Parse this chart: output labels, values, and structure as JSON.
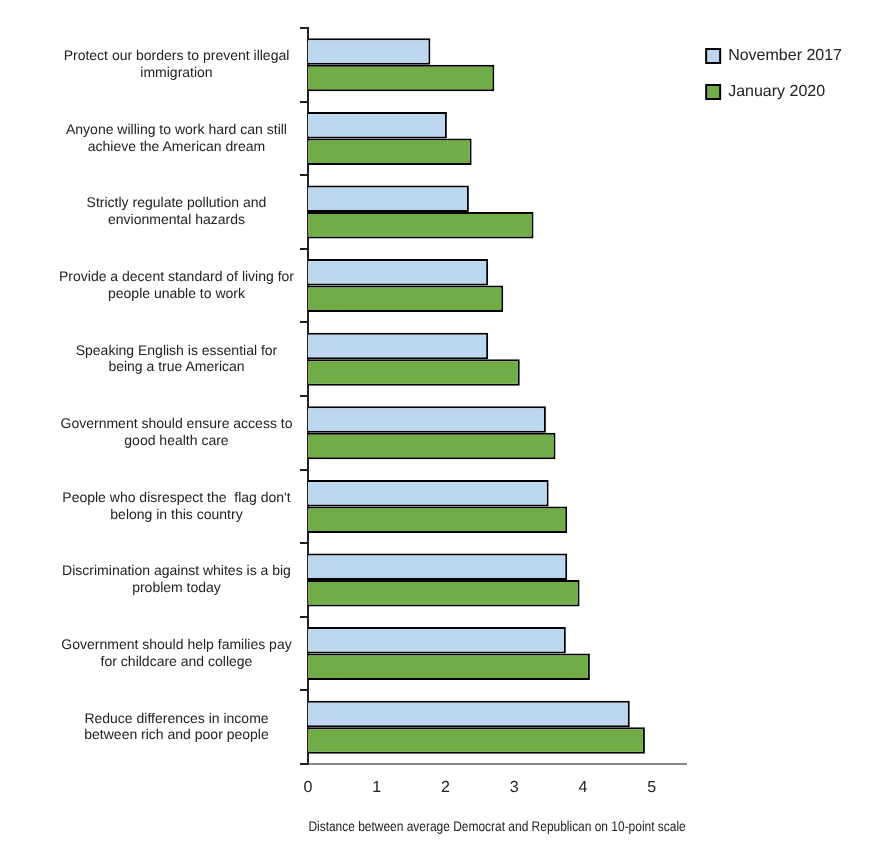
{
  "chart_data": {
    "type": "bar",
    "orientation": "horizontal",
    "xlabel": "Distance between average Democrat and Republican on 10-point scale",
    "categories": [
      "Protect our borders to prevent illegal immigration",
      "Anyone willing to work hard can still achieve the American dream",
      "Strictly regulate pollution and envionmental hazards",
      "Provide a decent standard of living for people unable to work",
      "Speaking English is essential for being a true American",
      "Government should ensure access to good health care",
      "People who disrespect the  flag don't belong in this country",
      "Discrimination against whites is a big problem today",
      "Government should help families pay for childcare and college",
      "Reduce differences in income between rich and poor people"
    ],
    "series": [
      {
        "name": "November 2017",
        "color": "#bdd7ee",
        "values": [
          1.78,
          2.02,
          2.34,
          2.62,
          2.62,
          3.46,
          3.5,
          3.77,
          3.75,
          4.68
        ]
      },
      {
        "name": "January 2020",
        "color": "#70ad47",
        "values": [
          2.71,
          2.38,
          3.28,
          2.84,
          3.08,
          3.6,
          3.77,
          3.95,
          4.1,
          4.9
        ]
      }
    ],
    "xlim": [
      0,
      5.5
    ],
    "xticks": [
      0,
      1,
      2,
      3,
      4,
      5
    ],
    "grid": false,
    "legend": "top right"
  }
}
